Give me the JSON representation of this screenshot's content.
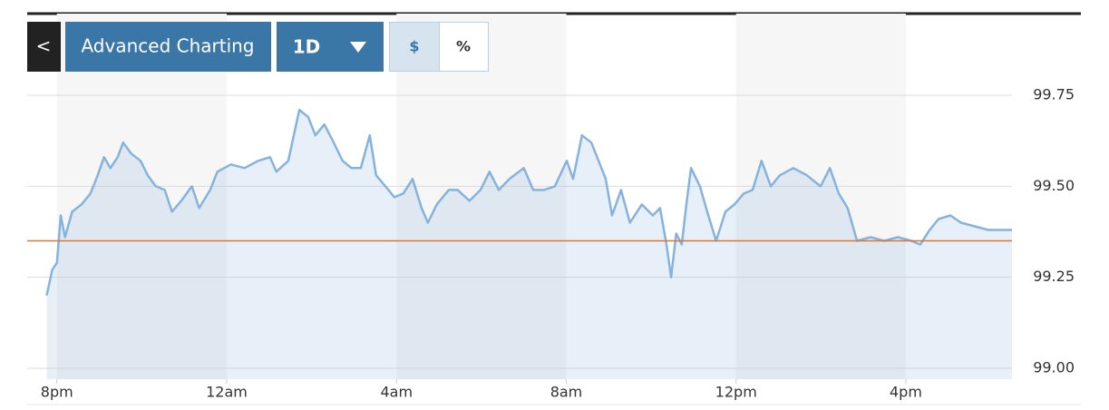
{
  "ui": {
    "buttons": [
      "<",
      "Advanced Charting",
      "1D",
      "$",
      "%"
    ]
  },
  "chart_data": {
    "type": "area",
    "x": [
      -0.24,
      -0.11,
      0,
      0.09,
      0.19,
      0.36,
      0.58,
      0.79,
      0.96,
      1.11,
      1.26,
      1.43,
      1.56,
      1.75,
      1.97,
      2.14,
      2.33,
      2.54,
      2.71,
      2.93,
      3.18,
      3.35,
      3.61,
      3.78,
      4.1,
      4.42,
      4.74,
      5.02,
      5.17,
      5.45,
      5.71,
      5.92,
      6.09,
      6.3,
      6.52,
      6.73,
      6.94,
      7.16,
      7.37,
      7.52,
      7.74,
      7.95,
      8.16,
      8.38,
      8.59,
      8.74,
      8.95,
      9.23,
      9.44,
      9.72,
      9.98,
      10.19,
      10.41,
      10.66,
      11.0,
      11.22,
      11.47,
      11.73,
      12.01,
      12.16,
      12.37,
      12.59,
      12.76,
      12.93,
      13.08,
      13.29,
      13.5,
      13.78,
      14.04,
      14.21,
      14.36,
      14.47,
      14.59,
      14.72,
      14.85,
      14.94,
      15.15,
      15.32,
      15.53,
      15.75,
      15.96,
      16.18,
      16.39,
      16.6,
      16.82,
      17.03,
      17.35,
      17.67,
      17.99,
      18.21,
      18.42,
      18.63,
      18.85,
      19.17,
      19.49,
      19.81,
      20.13,
      20.34,
      20.56,
      20.77,
      21.05,
      21.3,
      21.62,
      21.94,
      22.5
    ],
    "series": [
      {
        "color": "#86b3dd",
        "values": [
          99.2,
          99.27,
          99.29,
          99.42,
          99.36,
          99.43,
          99.45,
          99.48,
          99.53,
          99.58,
          99.55,
          99.58,
          99.62,
          99.59,
          99.57,
          99.53,
          99.5,
          99.49,
          99.43,
          99.46,
          99.5,
          99.44,
          99.49,
          99.54,
          99.56,
          99.55,
          99.57,
          99.58,
          99.54,
          99.57,
          99.71,
          99.69,
          99.64,
          99.67,
          99.62,
          99.57,
          99.55,
          99.55,
          99.64,
          99.53,
          99.5,
          99.47,
          99.48,
          99.52,
          99.44,
          99.4,
          99.45,
          99.49,
          99.49,
          99.46,
          99.49,
          99.54,
          99.49,
          99.52,
          99.55,
          99.49,
          99.49,
          99.5,
          99.57,
          99.52,
          99.64,
          99.62,
          99.57,
          99.52,
          99.42,
          99.49,
          99.4,
          99.45,
          99.42,
          99.44,
          99.34,
          99.25,
          99.37,
          99.34,
          99.47,
          99.55,
          99.5,
          99.43,
          99.35,
          99.43,
          99.45,
          99.48,
          99.49,
          99.57,
          99.5,
          99.53,
          99.55,
          99.53,
          99.5,
          99.55,
          99.48,
          99.44,
          99.35,
          99.36,
          99.35,
          99.36,
          99.35,
          99.34,
          99.38,
          99.41,
          99.42,
          99.4,
          99.39,
          99.38,
          99.38
        ]
      }
    ],
    "ref_line": {
      "value": 99.35,
      "color": "#d9773a"
    },
    "xlim": [
      -0.7,
      22.5
    ],
    "xticks": [
      {
        "value": 0,
        "label": "8pm"
      },
      {
        "value": 4,
        "label": "12am"
      },
      {
        "value": 8,
        "label": "4am"
      },
      {
        "value": 12,
        "label": "8am"
      },
      {
        "value": 16,
        "label": "12pm"
      },
      {
        "value": 20,
        "label": "4pm"
      }
    ],
    "ylim": [
      98.97,
      99.8
    ],
    "yticks": [
      {
        "value": 99,
        "label": "99.00"
      },
      99.25,
      {
        "value": 99.5,
        "label": "99.50"
      },
      99.75
    ],
    "grid": true
  }
}
